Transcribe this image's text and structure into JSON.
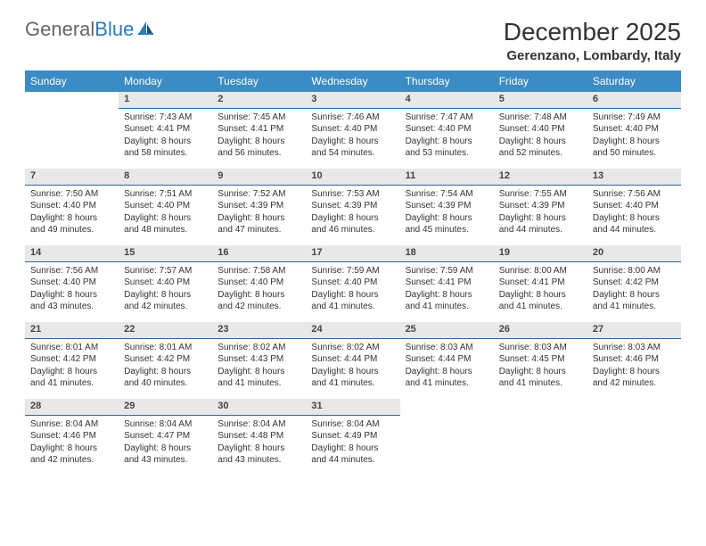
{
  "logo": {
    "text_general": "General",
    "text_blue": "Blue"
  },
  "title": "December 2025",
  "location": "Gerenzano, Lombardy, Italy",
  "colors": {
    "header_bg": "#3b8bc4",
    "daynum_bg": "#e8e8e8",
    "daynum_border": "#2c6a9e",
    "text": "#333333",
    "logo_blue": "#2c7ab8"
  },
  "weekdays": [
    "Sunday",
    "Monday",
    "Tuesday",
    "Wednesday",
    "Thursday",
    "Friday",
    "Saturday"
  ],
  "weeks": [
    [
      null,
      {
        "n": "1",
        "sr": "7:43 AM",
        "ss": "4:41 PM",
        "dl": "8 hours and 58 minutes."
      },
      {
        "n": "2",
        "sr": "7:45 AM",
        "ss": "4:41 PM",
        "dl": "8 hours and 56 minutes."
      },
      {
        "n": "3",
        "sr": "7:46 AM",
        "ss": "4:40 PM",
        "dl": "8 hours and 54 minutes."
      },
      {
        "n": "4",
        "sr": "7:47 AM",
        "ss": "4:40 PM",
        "dl": "8 hours and 53 minutes."
      },
      {
        "n": "5",
        "sr": "7:48 AM",
        "ss": "4:40 PM",
        "dl": "8 hours and 52 minutes."
      },
      {
        "n": "6",
        "sr": "7:49 AM",
        "ss": "4:40 PM",
        "dl": "8 hours and 50 minutes."
      }
    ],
    [
      {
        "n": "7",
        "sr": "7:50 AM",
        "ss": "4:40 PM",
        "dl": "8 hours and 49 minutes."
      },
      {
        "n": "8",
        "sr": "7:51 AM",
        "ss": "4:40 PM",
        "dl": "8 hours and 48 minutes."
      },
      {
        "n": "9",
        "sr": "7:52 AM",
        "ss": "4:39 PM",
        "dl": "8 hours and 47 minutes."
      },
      {
        "n": "10",
        "sr": "7:53 AM",
        "ss": "4:39 PM",
        "dl": "8 hours and 46 minutes."
      },
      {
        "n": "11",
        "sr": "7:54 AM",
        "ss": "4:39 PM",
        "dl": "8 hours and 45 minutes."
      },
      {
        "n": "12",
        "sr": "7:55 AM",
        "ss": "4:39 PM",
        "dl": "8 hours and 44 minutes."
      },
      {
        "n": "13",
        "sr": "7:56 AM",
        "ss": "4:40 PM",
        "dl": "8 hours and 44 minutes."
      }
    ],
    [
      {
        "n": "14",
        "sr": "7:56 AM",
        "ss": "4:40 PM",
        "dl": "8 hours and 43 minutes."
      },
      {
        "n": "15",
        "sr": "7:57 AM",
        "ss": "4:40 PM",
        "dl": "8 hours and 42 minutes."
      },
      {
        "n": "16",
        "sr": "7:58 AM",
        "ss": "4:40 PM",
        "dl": "8 hours and 42 minutes."
      },
      {
        "n": "17",
        "sr": "7:59 AM",
        "ss": "4:40 PM",
        "dl": "8 hours and 41 minutes."
      },
      {
        "n": "18",
        "sr": "7:59 AM",
        "ss": "4:41 PM",
        "dl": "8 hours and 41 minutes."
      },
      {
        "n": "19",
        "sr": "8:00 AM",
        "ss": "4:41 PM",
        "dl": "8 hours and 41 minutes."
      },
      {
        "n": "20",
        "sr": "8:00 AM",
        "ss": "4:42 PM",
        "dl": "8 hours and 41 minutes."
      }
    ],
    [
      {
        "n": "21",
        "sr": "8:01 AM",
        "ss": "4:42 PM",
        "dl": "8 hours and 41 minutes."
      },
      {
        "n": "22",
        "sr": "8:01 AM",
        "ss": "4:42 PM",
        "dl": "8 hours and 40 minutes."
      },
      {
        "n": "23",
        "sr": "8:02 AM",
        "ss": "4:43 PM",
        "dl": "8 hours and 41 minutes."
      },
      {
        "n": "24",
        "sr": "8:02 AM",
        "ss": "4:44 PM",
        "dl": "8 hours and 41 minutes."
      },
      {
        "n": "25",
        "sr": "8:03 AM",
        "ss": "4:44 PM",
        "dl": "8 hours and 41 minutes."
      },
      {
        "n": "26",
        "sr": "8:03 AM",
        "ss": "4:45 PM",
        "dl": "8 hours and 41 minutes."
      },
      {
        "n": "27",
        "sr": "8:03 AM",
        "ss": "4:46 PM",
        "dl": "8 hours and 42 minutes."
      }
    ],
    [
      {
        "n": "28",
        "sr": "8:04 AM",
        "ss": "4:46 PM",
        "dl": "8 hours and 42 minutes."
      },
      {
        "n": "29",
        "sr": "8:04 AM",
        "ss": "4:47 PM",
        "dl": "8 hours and 43 minutes."
      },
      {
        "n": "30",
        "sr": "8:04 AM",
        "ss": "4:48 PM",
        "dl": "8 hours and 43 minutes."
      },
      {
        "n": "31",
        "sr": "8:04 AM",
        "ss": "4:49 PM",
        "dl": "8 hours and 44 minutes."
      },
      null,
      null,
      null
    ]
  ],
  "labels": {
    "sunrise": "Sunrise:",
    "sunset": "Sunset:",
    "daylight": "Daylight:"
  }
}
